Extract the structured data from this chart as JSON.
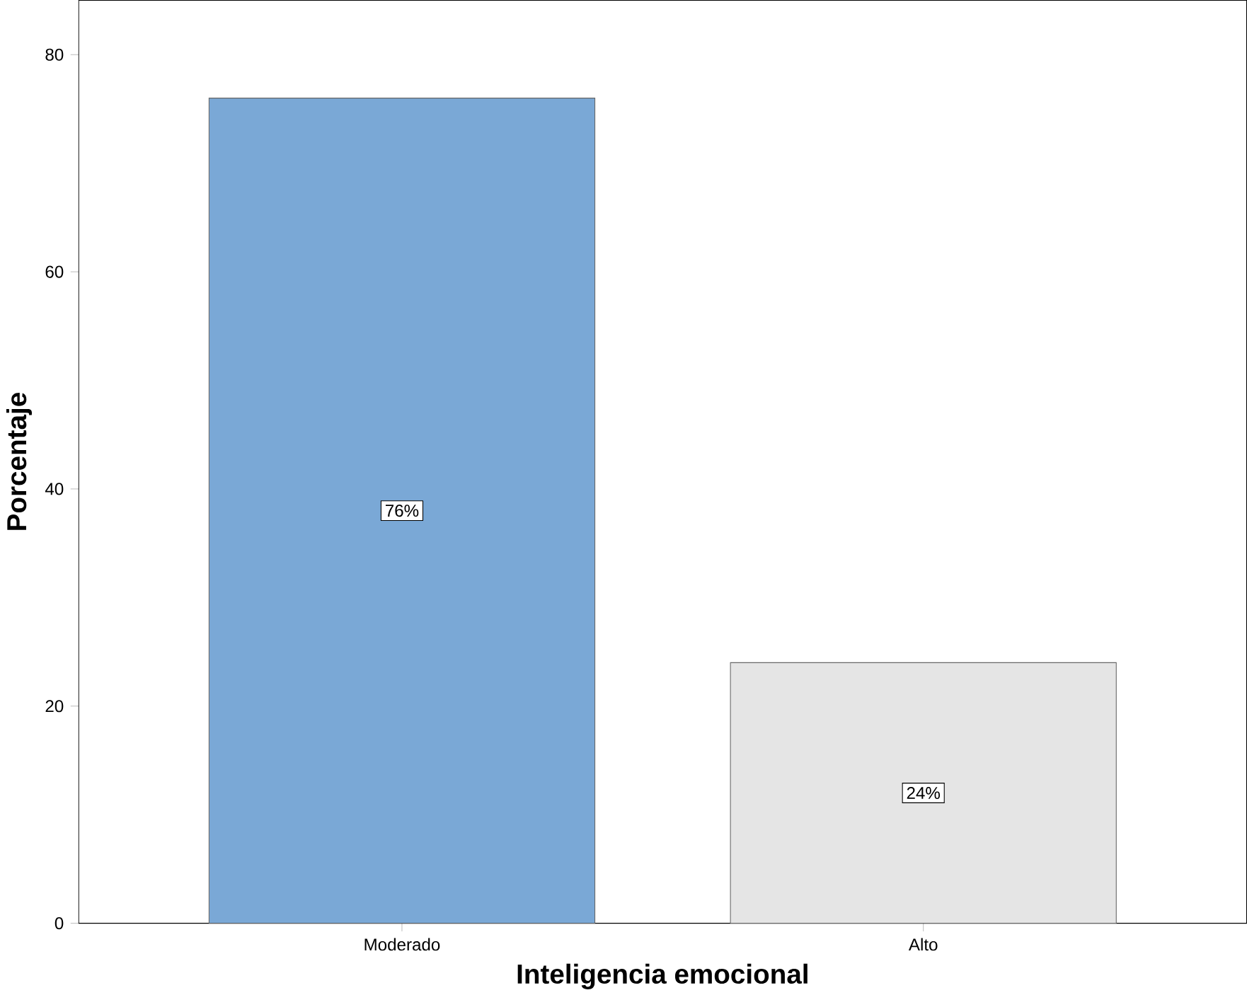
{
  "chart_data": {
    "type": "bar",
    "xlabel": "Inteligencia emocional",
    "ylabel": "Porcentaje",
    "categories": [
      "Moderado",
      "Alto"
    ],
    "values": [
      76,
      24
    ],
    "colors": [
      "#7aa8d6",
      "#e5e5e5"
    ],
    "value_labels": [
      "76%",
      "24%"
    ],
    "ylim": [
      0,
      85
    ],
    "yticks": [
      0,
      20,
      40,
      60,
      80
    ]
  }
}
